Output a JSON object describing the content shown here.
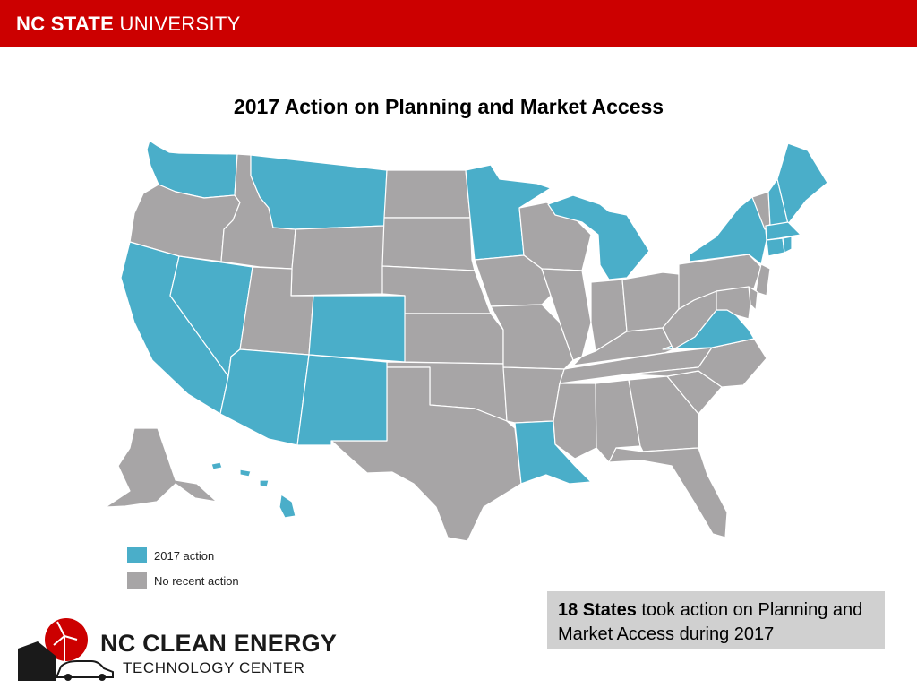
{
  "header": {
    "brand_bold": "NC STATE",
    "brand_regular": " UNIVERSITY",
    "bar_color": "#cc0000"
  },
  "title": "2017 Action on Planning and Market Access",
  "map": {
    "states_with_action": [
      "WA",
      "MT",
      "MN",
      "MI",
      "NY",
      "ME",
      "NH",
      "MA",
      "CT",
      "RI",
      "CA",
      "NV",
      "CO",
      "AZ",
      "NM",
      "LA",
      "VA",
      "HI"
    ],
    "colors": {
      "action": "#4aaec9",
      "no_action": "#a7a5a6",
      "border": "#ffffff"
    }
  },
  "legend": {
    "items": [
      {
        "label": "2017 action",
        "color": "#4aaec9"
      },
      {
        "label": "No recent action",
        "color": "#a7a5a6"
      }
    ]
  },
  "callout": {
    "bold": "18 States",
    "text": " took action on Planning and Market Access during 2017"
  },
  "logo": {
    "line1": "NC CLEAN ENERGY",
    "line2": "TECHNOLOGY CENTER",
    "icon": "solar-wind-car-logo-icon"
  }
}
